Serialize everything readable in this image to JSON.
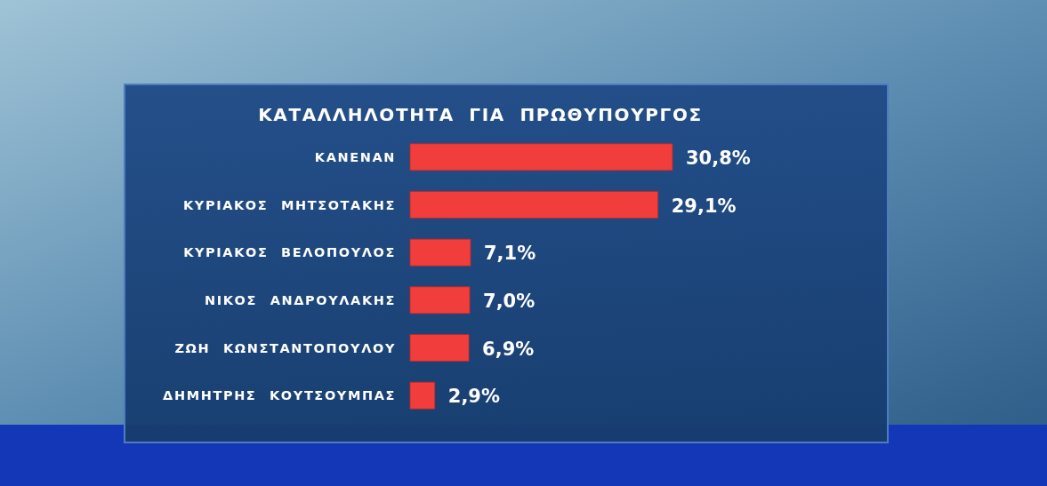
{
  "chart_data": {
    "type": "bar",
    "orientation": "horizontal",
    "title": "ΚΑΤΑΛΛΗΛΟΤΗΤΑ ΓΙΑ ΠΡΩΘΥΠΟΥΡΓΟΣ",
    "categories": [
      "ΚΑΝΕΝΑΝ",
      "ΚΥΡΙΑΚΟΣ ΜΗΤΣΟΤΑΚΗΣ",
      "ΚΥΡΙΑΚΟΣ ΒΕΛΟΠΟΥΛΟΣ",
      "ΝΙΚΟΣ ΑΝΔΡΟΥΛΑΚΗΣ",
      "ΖΩΗ ΚΩΝΣΤΑΝΤΟΠΟΥΛΟΥ",
      "ΔΗΜΗΤΡΗΣ ΚΟΥΤΣΟΥΜΠΑΣ"
    ],
    "values": [
      30.8,
      29.1,
      7.1,
      7.0,
      6.9,
      2.9
    ],
    "value_labels": [
      "30,8%",
      "29,1%",
      "7,1%",
      "7,0%",
      "6,9%",
      "2,9%"
    ],
    "color": "#f23d3d"
  }
}
